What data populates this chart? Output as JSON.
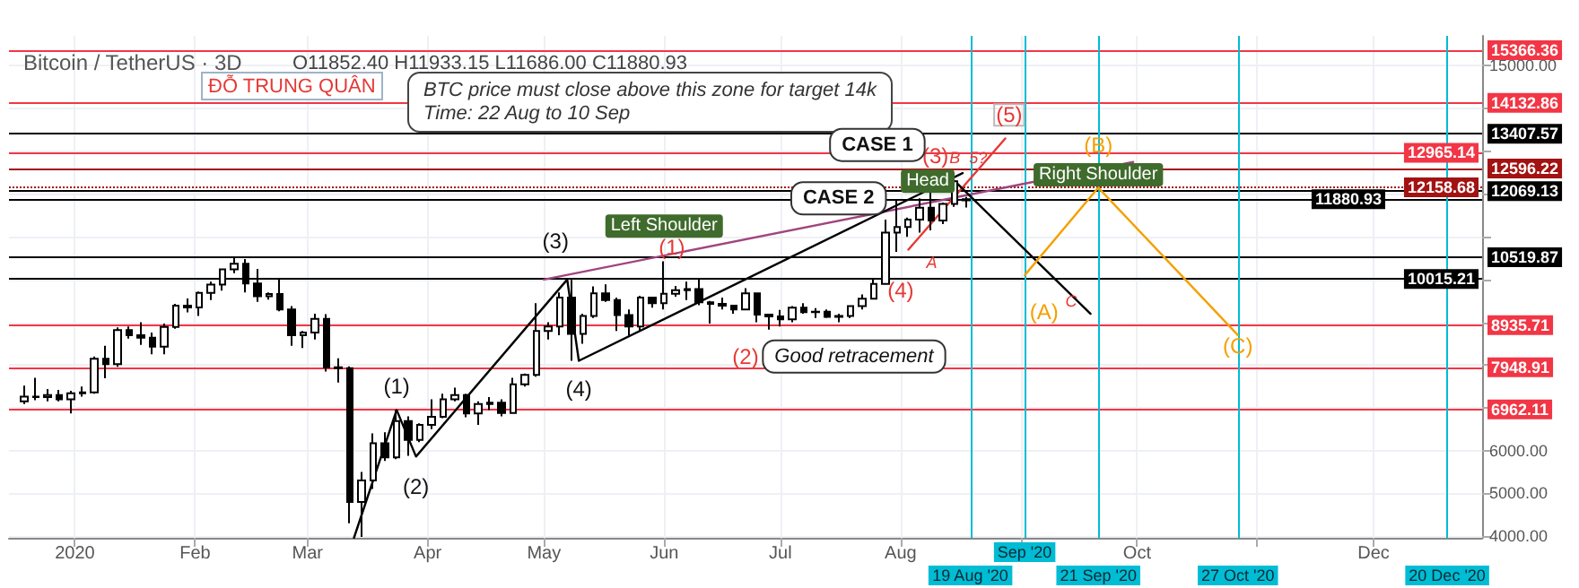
{
  "chart_data": {
    "type": "candlestick",
    "title": "Bitcoin / TetherUS · 3D",
    "subtitle": "O11852.40 H11933.15 L11686.00 C11880.93",
    "color": "#000000",
    "x": [
      "2019-12-19",
      "2019-12-22",
      "2019-12-25",
      "2019-12-28",
      "2019-12-31",
      "2020-01-03",
      "2020-01-06",
      "2020-01-09",
      "2020-01-12",
      "2020-01-15",
      "2020-01-18",
      "2020-01-21",
      "2020-01-24",
      "2020-01-27",
      "2020-01-30",
      "2020-02-02",
      "2020-02-05",
      "2020-02-08",
      "2020-02-11",
      "2020-02-14",
      "2020-02-17",
      "2020-02-20",
      "2020-02-23",
      "2020-02-26",
      "2020-02-29",
      "2020-03-03",
      "2020-03-06",
      "2020-03-09",
      "2020-03-12",
      "2020-03-15",
      "2020-03-18",
      "2020-03-21",
      "2020-03-24",
      "2020-03-27",
      "2020-03-30",
      "2020-04-02",
      "2020-04-05",
      "2020-04-08",
      "2020-04-11",
      "2020-04-14",
      "2020-04-17",
      "2020-04-20",
      "2020-04-23",
      "2020-04-26",
      "2020-04-29",
      "2020-05-02",
      "2020-05-05",
      "2020-05-08",
      "2020-05-11",
      "2020-05-14",
      "2020-05-17",
      "2020-05-20",
      "2020-05-23",
      "2020-05-26",
      "2020-05-29",
      "2020-06-01",
      "2020-06-04",
      "2020-06-07",
      "2020-06-10",
      "2020-06-13",
      "2020-06-16",
      "2020-06-19",
      "2020-06-22",
      "2020-06-25",
      "2020-06-28",
      "2020-07-01",
      "2020-07-04",
      "2020-07-07",
      "2020-07-10",
      "2020-07-13",
      "2020-07-16",
      "2020-07-19",
      "2020-07-22",
      "2020-07-25",
      "2020-07-28",
      "2020-07-31",
      "2020-08-03",
      "2020-08-06",
      "2020-08-09",
      "2020-08-12",
      "2020-08-15",
      "2020-08-18"
    ],
    "ohlc": [
      [
        7150,
        7520,
        7090,
        7260
      ],
      [
        7260,
        7700,
        7180,
        7250
      ],
      [
        7250,
        7440,
        7150,
        7300
      ],
      [
        7300,
        7420,
        7150,
        7200
      ],
      [
        7200,
        7400,
        6870,
        7340
      ],
      [
        7340,
        7500,
        7260,
        7360
      ],
      [
        7360,
        8200,
        7330,
        8150
      ],
      [
        8150,
        8450,
        7690,
        8020
      ],
      [
        8020,
        8880,
        7960,
        8820
      ],
      [
        8820,
        8900,
        8620,
        8700
      ],
      [
        8700,
        9000,
        8470,
        8640
      ],
      [
        8640,
        8760,
        8250,
        8430
      ],
      [
        8430,
        8970,
        8250,
        8890
      ],
      [
        8890,
        9430,
        8850,
        9390
      ],
      [
        9390,
        9560,
        9230,
        9350
      ],
      [
        9350,
        9720,
        9150,
        9690
      ],
      [
        9690,
        9950,
        9520,
        9880
      ],
      [
        9880,
        10250,
        9740,
        10240
      ],
      [
        10240,
        10500,
        10150,
        10370
      ],
      [
        10370,
        10480,
        9700,
        9910
      ],
      [
        9910,
        10250,
        9480,
        9610
      ],
      [
        9610,
        9700,
        9530,
        9660
      ],
      [
        9660,
        10020,
        9260,
        9300
      ],
      [
        9300,
        9380,
        8450,
        8700
      ],
      [
        8700,
        8800,
        8400,
        8760
      ],
      [
        8760,
        9200,
        8600,
        9080
      ],
      [
        9080,
        9190,
        7850,
        7950
      ],
      [
        7950,
        8160,
        7590,
        7930
      ],
      [
        7930,
        7970,
        4300,
        4800
      ],
      [
        4800,
        5500,
        3980,
        5300
      ],
      [
        5300,
        6400,
        5100,
        6170
      ],
      [
        6170,
        6430,
        5760,
        5840
      ],
      [
        5840,
        6950,
        5800,
        6690
      ],
      [
        6690,
        6800,
        5880,
        6250
      ],
      [
        6250,
        6640,
        6200,
        6600
      ],
      [
        6600,
        7200,
        6500,
        6790
      ],
      [
        6790,
        7330,
        6760,
        7200
      ],
      [
        7200,
        7470,
        7150,
        7300
      ],
      [
        7300,
        7330,
        6780,
        6870
      ],
      [
        6870,
        7150,
        6600,
        7090
      ],
      [
        7090,
        7250,
        6950,
        7120
      ],
      [
        7120,
        7200,
        6800,
        6880
      ],
      [
        6880,
        7700,
        6860,
        7550
      ],
      [
        7550,
        7800,
        7500,
        7770
      ],
      [
        7770,
        9450,
        7730,
        8800
      ],
      [
        8800,
        9000,
        8600,
        8900
      ],
      [
        8900,
        9700,
        8700,
        9580
      ],
      [
        9580,
        9990,
        8100,
        8730
      ],
      [
        8730,
        9200,
        8500,
        9150
      ],
      [
        9150,
        9840,
        9100,
        9680
      ],
      [
        9680,
        9890,
        9480,
        9520
      ],
      [
        9520,
        9580,
        8800,
        9170
      ],
      [
        9170,
        9300,
        8700,
        8900
      ],
      [
        8900,
        9620,
        8810,
        9580
      ],
      [
        9580,
        9600,
        9340,
        9450
      ],
      [
        9450,
        10430,
        9300,
        9670
      ],
      [
        9670,
        9850,
        9600,
        9750
      ],
      [
        9750,
        9950,
        9520,
        9780
      ],
      [
        9780,
        10000,
        9400,
        9470
      ],
      [
        9470,
        9500,
        8970,
        9430
      ],
      [
        9430,
        9580,
        9300,
        9390
      ],
      [
        9390,
        9400,
        9200,
        9300
      ],
      [
        9300,
        9800,
        9280,
        9680
      ],
      [
        9680,
        9700,
        9000,
        9180
      ],
      [
        9180,
        9200,
        8830,
        9140
      ],
      [
        9140,
        9290,
        8900,
        9070
      ],
      [
        9070,
        9380,
        9000,
        9340
      ],
      [
        9340,
        9450,
        9200,
        9240
      ],
      [
        9240,
        9330,
        9100,
        9250
      ],
      [
        9250,
        9300,
        9100,
        9130
      ],
      [
        9130,
        9200,
        9000,
        9150
      ],
      [
        9150,
        9400,
        9100,
        9380
      ],
      [
        9380,
        9650,
        9300,
        9550
      ],
      [
        9550,
        10000,
        9530,
        9900
      ],
      [
        9900,
        11400,
        9900,
        11100
      ],
      [
        11100,
        11860,
        10650,
        11230
      ],
      [
        11230,
        11450,
        11000,
        11400
      ],
      [
        11400,
        11900,
        11100,
        11680
      ],
      [
        11680,
        12090,
        11150,
        11380
      ],
      [
        11380,
        11800,
        11300,
        11770
      ],
      [
        11770,
        12490,
        11700,
        12300
      ],
      [
        11852.4,
        11933.15,
        11686.0,
        11880.93
      ]
    ],
    "series": [
      {
        "type": "line",
        "color": "#a0457e",
        "x": [
          "2020-05-01",
          "2020-09-30"
        ],
        "values": [
          10000,
          12750
        ]
      },
      {
        "type": "line",
        "color": "#000000",
        "x": [
          "2020-03-13",
          "2020-03-24",
          "2020-03-29",
          "2020-05-07",
          "2020-05-10",
          "2020-08-17"
        ],
        "values": [
          3960,
          6950,
          5860,
          10000,
          8100,
          12490
        ]
      },
      {
        "type": "line",
        "color": "#e53935",
        "x": [
          "2020-08-03",
          "2020-08-28"
        ],
        "values": [
          10700,
          13300
        ]
      },
      {
        "type": "line",
        "color": "#000000",
        "x": [
          "2020-08-15",
          "2020-09-19"
        ],
        "values": [
          12300,
          9200
        ]
      },
      {
        "type": "line",
        "color": "#f59f00",
        "x": [
          "2020-09-02",
          "2020-09-21",
          "2020-10-27"
        ],
        "values": [
          10100,
          12150,
          8700
        ]
      }
    ],
    "xlim": [
      "2019-12-15",
      "2020-12-29"
    ],
    "xticks": [
      {
        "value": "2020-01-01",
        "label": "2020"
      },
      {
        "value": "2020-02-01",
        "label": "Feb"
      },
      {
        "value": "2020-03-01",
        "label": "Mar"
      },
      {
        "value": "2020-04-01",
        "label": "Apr"
      },
      {
        "value": "2020-05-01",
        "label": "May"
      },
      {
        "value": "2020-06-01",
        "label": "Jun"
      },
      {
        "value": "2020-07-01",
        "label": "Jul"
      },
      {
        "value": "2020-08-01",
        "label": "Aug"
      },
      {
        "value": "2020-09-01",
        "label": null
      },
      {
        "value": "2020-10-01",
        "label": "Oct"
      },
      {
        "value": "2020-11-01",
        "label": null
      },
      {
        "value": "2020-12-01",
        "label": "Dec"
      }
    ],
    "ylim": [
      3960,
      15700
    ],
    "yticks": [
      {
        "value": 4000,
        "label": "4000.00"
      },
      {
        "value": 5000,
        "label": "5000.00"
      },
      {
        "value": 6000,
        "label": "6000.00"
      },
      {
        "value": 7000,
        "label": null
      },
      {
        "value": 8000,
        "label": null
      },
      {
        "value": 9000,
        "label": null
      },
      {
        "value": 10000,
        "label": null
      },
      {
        "value": 11000,
        "label": null
      },
      {
        "value": 12000,
        "label": null
      },
      {
        "value": 13000,
        "label": null
      },
      {
        "value": 14000,
        "label": null
      },
      {
        "value": 15000,
        "label": "15000.00"
      }
    ],
    "grid": true,
    "ref_lines": [
      {
        "axis": "y",
        "value": 15366.36,
        "label": "15366.36",
        "color": "#f23645"
      },
      {
        "axis": "y",
        "value": 14132.86,
        "label": "14132.86",
        "color": "#f23645"
      },
      {
        "axis": "y",
        "value": 13407.57,
        "label": "13407.57",
        "color": "#000000"
      },
      {
        "axis": "y",
        "value": 12965.14,
        "label": "12965.14",
        "color": "#f23645"
      },
      {
        "axis": "y",
        "value": 12596.22,
        "label": "12596.22",
        "color": "#a31212"
      },
      {
        "axis": "y",
        "value": 12158.68,
        "label": "12158.68",
        "color": "#a31212",
        "line_style": "dotted"
      },
      {
        "axis": "y",
        "value": 12069.13,
        "label": "12069.13",
        "color": "#000000"
      },
      {
        "axis": "y",
        "value": 11880.93,
        "label": "11880.93",
        "color": "#000000"
      },
      {
        "axis": "y",
        "value": 10519.87,
        "label": "10519.87",
        "color": "#000000"
      },
      {
        "axis": "y",
        "value": 10015.21,
        "label": "10015.21",
        "color": "#000000"
      },
      {
        "axis": "y",
        "value": 8935.71,
        "label": "8935.71",
        "color": "#f23645"
      },
      {
        "axis": "y",
        "value": 7948.91,
        "label": "7948.91",
        "color": "#f23645"
      },
      {
        "axis": "y",
        "value": 6962.11,
        "label": "6962.11",
        "color": "#f23645"
      },
      {
        "axis": "x",
        "value": "2020-08-19",
        "label": "19 Aug '20",
        "color": "#00bcd4"
      },
      {
        "axis": "x",
        "value": "2020-09-02",
        "label": "Sep '20",
        "color": "#00bcd4"
      },
      {
        "axis": "x",
        "value": "2020-09-21",
        "label": "21 Sep '20",
        "color": "#00bcd4"
      },
      {
        "axis": "x",
        "value": "2020-10-27",
        "label": "27 Oct '20",
        "color": "#00bcd4"
      },
      {
        "axis": "x",
        "value": "2020-12-20",
        "label": "20 Dec '20",
        "color": "#00bcd4"
      }
    ],
    "annotations": [
      "ĐỖ TRUNG QUÂN",
      "BTC price must close above this zone for target 14k\nTime: 22 Aug to 10 Sep",
      "(1)",
      "(2)",
      "(3)",
      "(4)",
      "Left Shoulder",
      {
        "text": "(1)",
        "x": "2020-06-03",
        "y": 10750
      },
      "(2)",
      "Good retracement",
      {
        "text": "CASE 2",
        "x": "2020-07-16",
        "y": 11900
      },
      {
        "text": "Head",
        "x": "2020-08-08",
        "y": 12300
      },
      {
        "text": "(3)",
        "x": "2020-08-10",
        "y": 12900
      },
      {
        "text": "B",
        "x": "2020-08-15",
        "y": 12850
      },
      {
        "text": "5?",
        "x": "2020-08-21",
        "y": 12850
      },
      "(4)",
      {
        "text": "A",
        "x": "2020-08-09",
        "y": 10400
      },
      {
        "text": "CASE 1",
        "x": "2020-07-26",
        "y": 13150
      },
      {
        "text": "(5)",
        "x": "2020-08-29",
        "y": 13850
      },
      "(A)",
      {
        "text": "Right Shoulder",
        "x": "2020-09-21",
        "y": 12450
      },
      {
        "text": "(B)",
        "x": "2020-09-21",
        "y": 13150
      },
      {
        "text": "C",
        "x": "2020-09-14",
        "y": 9500
      },
      {
        "text": "(C)",
        "x": "2020-10-27",
        "y": 8450
      }
    ]
  }
}
